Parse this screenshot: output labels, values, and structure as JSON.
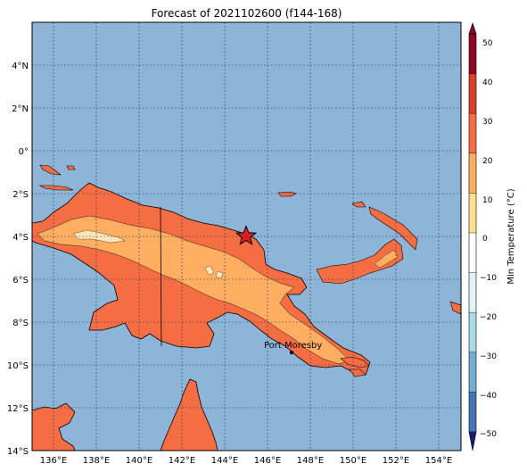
{
  "title": "Forecast of 2021102600 (f144-168)",
  "lon_ticks": [
    "136°E",
    "138°E",
    "140°E",
    "142°E",
    "144°E",
    "146°E",
    "148°E",
    "150°E",
    "152°E",
    "154°E"
  ],
  "lat_ticks": [
    "4°N",
    "2°N",
    "0°",
    "2°S",
    "4°S",
    "6°S",
    "8°S",
    "10°S",
    "12°S",
    "14°S"
  ],
  "city_label": "Port Moresby",
  "colorbar": {
    "label": "Min Temperature (°C)",
    "ticks": [
      "50",
      "40",
      "30",
      "20",
      "10",
      "0",
      "−10",
      "−20",
      "−30",
      "−40",
      "−50"
    ],
    "colors_top_to_bottom": [
      "#8b0a26",
      "#b11f2a",
      "#d7402b",
      "#f46d43",
      "#fdae61",
      "#fee090",
      "#ffffff",
      "#e0f3f8",
      "#abd9e9",
      "#74add1",
      "#4575b4",
      "#2a3a90",
      "#1a1a70"
    ]
  },
  "colors": {
    "ocean": "#8eb4d8",
    "land_warm": "#f46d43",
    "land_mid": "#fdae61",
    "land_cool": "#fee6b8",
    "star": "#d62020"
  }
}
